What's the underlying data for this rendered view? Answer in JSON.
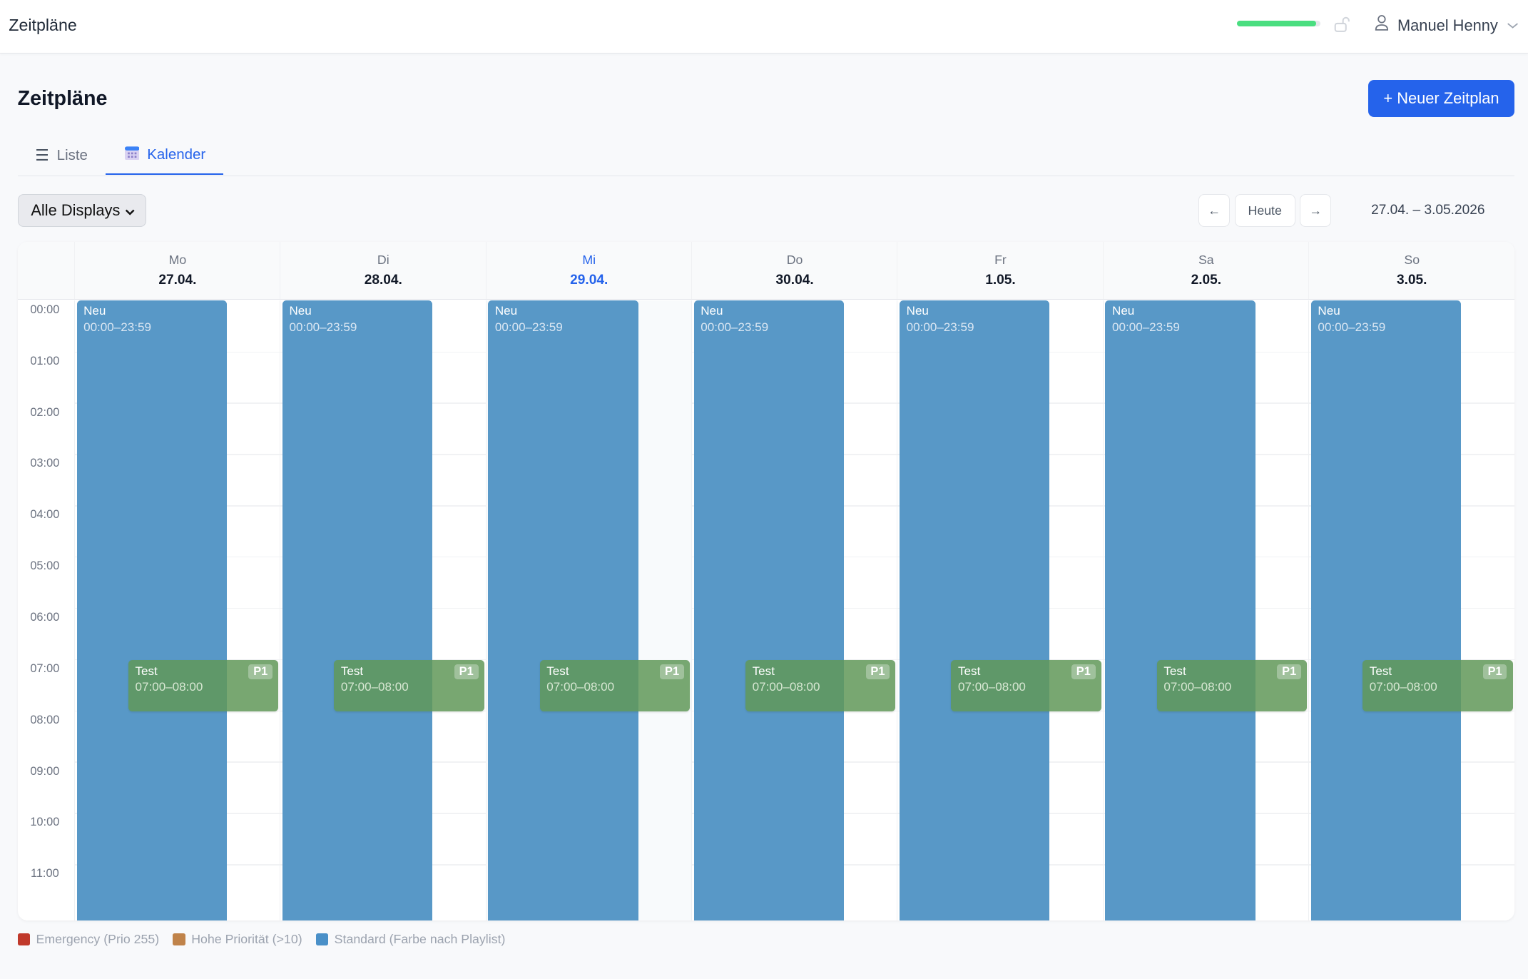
{
  "header": {
    "app_title": "Zeitpläne",
    "user_name": "Manuel Henny",
    "progress_percent": 95
  },
  "page": {
    "title": "Zeitpläne",
    "new_button": "+ Neuer Zeitplan"
  },
  "tabs": [
    {
      "label": "Liste",
      "icon": "list-icon"
    },
    {
      "label": "Kalender",
      "icon": "calendar-icon",
      "active": true
    }
  ],
  "filter": {
    "selected": "Alle Displays"
  },
  "nav": {
    "prev": "←",
    "today": "Heute",
    "next": "→",
    "range": "27.04. – 3.05.2026"
  },
  "days": [
    {
      "name": "Mo",
      "date": "27.04."
    },
    {
      "name": "Di",
      "date": "28.04."
    },
    {
      "name": "Mi",
      "date": "29.04.",
      "today": true
    },
    {
      "name": "Do",
      "date": "30.04."
    },
    {
      "name": "Fr",
      "date": "1.05."
    },
    {
      "name": "Sa",
      "date": "2.05."
    },
    {
      "name": "So",
      "date": "3.05."
    }
  ],
  "hours": [
    "00:00",
    "01:00",
    "02:00",
    "03:00",
    "04:00",
    "05:00",
    "06:00",
    "07:00",
    "08:00",
    "09:00",
    "10:00",
    "11:00"
  ],
  "events": {
    "neu": {
      "title": "Neu",
      "time": "00:00–23:59",
      "color": "#5898c7"
    },
    "test": {
      "title": "Test",
      "time": "07:00–08:00",
      "badge": "P1",
      "color": "#6a9f60"
    }
  },
  "legend": [
    {
      "label": "Emergency (Prio 255)",
      "color": "#c0392b"
    },
    {
      "label": "Hohe Priorität (>10)",
      "color": "#c0834a"
    },
    {
      "label": "Standard (Farbe nach Playlist)",
      "color": "#4a90c8"
    }
  ]
}
